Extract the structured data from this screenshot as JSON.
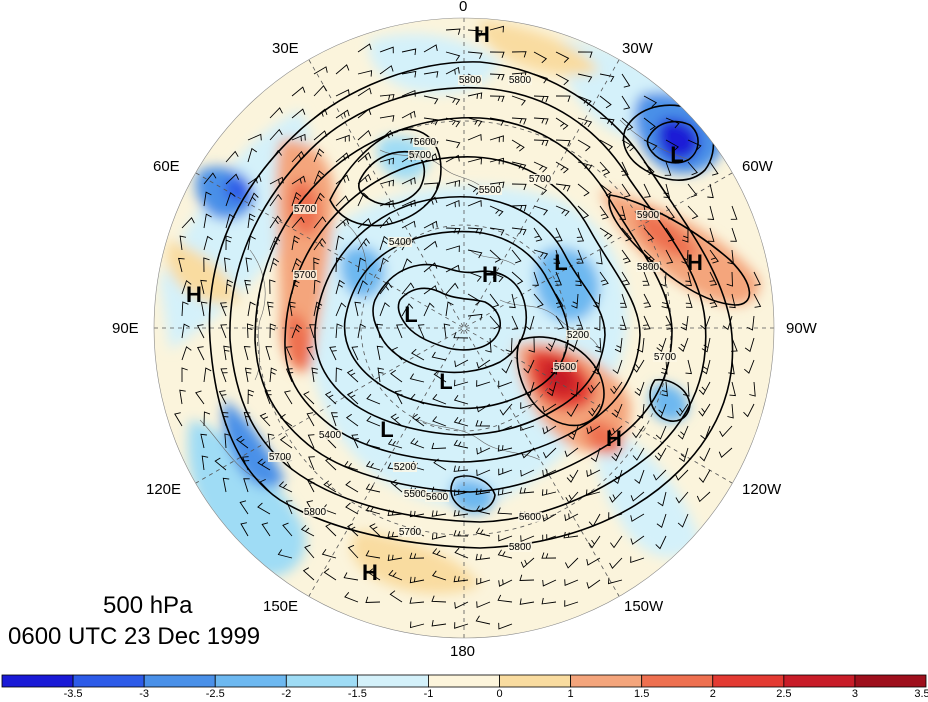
{
  "map": {
    "projection": "north-polar-stereographic",
    "level_label": "500 hPa",
    "time_label": "0600 UTC 23 Dec 1999",
    "longitude_labels": [
      "0",
      "30W",
      "60W",
      "90W",
      "120W",
      "150W",
      "180",
      "150E",
      "120E",
      "90E",
      "60E",
      "30E"
    ],
    "contour_labels": [
      "5800",
      "5800",
      "5700",
      "5600",
      "5500",
      "5400",
      "5700",
      "5900",
      "5800",
      "5700",
      "5200",
      "5700",
      "5600",
      "5700",
      "5800",
      "5500",
      "5200",
      "5400",
      "5600",
      "5600",
      "5700",
      "5800",
      "5700"
    ],
    "pressure_centers": [
      {
        "type": "H"
      },
      {
        "type": "L"
      },
      {
        "type": "H"
      },
      {
        "type": "H"
      },
      {
        "type": "L"
      },
      {
        "type": "L"
      },
      {
        "type": "L"
      },
      {
        "type": "L"
      },
      {
        "type": "H"
      },
      {
        "type": "H"
      },
      {
        "type": "H"
      }
    ]
  },
  "colorbar": {
    "colors": [
      "#1a1ad6",
      "#2d5be8",
      "#4a90e8",
      "#6db8f0",
      "#9fdcf5",
      "#d4f1fa",
      "#fdf5dc",
      "#f9dca0",
      "#f4a57c",
      "#ee7050",
      "#e33a32",
      "#c81c28",
      "#9e0f1c"
    ],
    "tick_labels": [
      "-3.5",
      "-3",
      "-2.5",
      "-2",
      "-1.5",
      "-1",
      "0",
      "1",
      "1.5",
      "2",
      "2.5",
      "3",
      "3.5"
    ]
  }
}
